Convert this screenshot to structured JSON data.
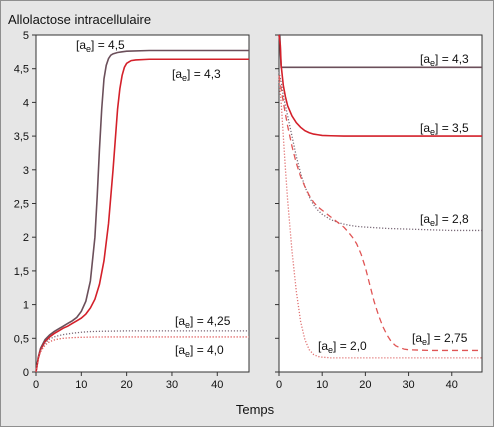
{
  "chart_data": [
    {
      "type": "line",
      "title": "Allolactose intracellulaire",
      "xlabel": "Temps",
      "ylabel": "",
      "xlim": [
        0,
        47
      ],
      "ylim": [
        0,
        5
      ],
      "xticks": [
        0,
        10,
        20,
        30,
        40
      ],
      "yticks": [
        0,
        0.5,
        1,
        1.5,
        2,
        2.5,
        3,
        3.5,
        4,
        4.5,
        5
      ],
      "ytick_labels": [
        "0",
        "0,5",
        "1",
        "1,5",
        "2",
        "2,5",
        "3",
        "3,5",
        "4",
        "4,5",
        "5"
      ],
      "series": [
        {
          "name": "[ae] = 4,5",
          "color": "#6b4f5a",
          "style": "solid",
          "x": [
            0,
            0.5,
            1,
            2,
            3,
            4,
            5,
            6,
            7,
            8,
            9,
            10,
            11,
            12,
            13,
            13.5,
            14,
            14.5,
            15,
            15.5,
            16,
            16.5,
            17,
            18,
            19,
            20,
            25,
            30,
            35,
            40,
            47
          ],
          "y": [
            0,
            0.22,
            0.35,
            0.48,
            0.55,
            0.6,
            0.64,
            0.68,
            0.72,
            0.76,
            0.81,
            0.9,
            1.05,
            1.35,
            2.0,
            2.6,
            3.3,
            3.9,
            4.35,
            4.55,
            4.65,
            4.7,
            4.72,
            4.74,
            4.75,
            4.76,
            4.77,
            4.77,
            4.77,
            4.77,
            4.77
          ]
        },
        {
          "name": "[ae] = 4,3",
          "color": "#d4202a",
          "style": "solid",
          "x": [
            0,
            0.5,
            1,
            2,
            3,
            4,
            5,
            6,
            7,
            8,
            9,
            10,
            11,
            12,
            13,
            14,
            15,
            16,
            17,
            17.5,
            18,
            18.5,
            19,
            19.5,
            20,
            21,
            22,
            25,
            30,
            35,
            40,
            47
          ],
          "y": [
            0,
            0.2,
            0.33,
            0.45,
            0.52,
            0.57,
            0.61,
            0.65,
            0.68,
            0.72,
            0.76,
            0.8,
            0.86,
            0.95,
            1.08,
            1.3,
            1.65,
            2.2,
            3.0,
            3.45,
            3.9,
            4.2,
            4.4,
            4.52,
            4.58,
            4.62,
            4.63,
            4.64,
            4.64,
            4.64,
            4.64,
            4.64
          ]
        },
        {
          "name": "[ae] = 4,25",
          "color": "#7a6a78",
          "style": "dotted",
          "x": [
            0,
            0.5,
            1,
            2,
            3,
            4,
            5,
            6,
            8,
            10,
            12,
            15,
            20,
            25,
            30,
            35,
            40,
            47
          ],
          "y": [
            0,
            0.2,
            0.32,
            0.43,
            0.49,
            0.52,
            0.54,
            0.555,
            0.575,
            0.59,
            0.6,
            0.605,
            0.61,
            0.61,
            0.61,
            0.61,
            0.61,
            0.61
          ]
        },
        {
          "name": "[ae] = 4,0",
          "color": "#e05555",
          "style": "dotted",
          "x": [
            0,
            0.5,
            1,
            2,
            3,
            4,
            5,
            6,
            8,
            10,
            12,
            15,
            20,
            25,
            30,
            35,
            40,
            47
          ],
          "y": [
            0,
            0.19,
            0.3,
            0.4,
            0.45,
            0.475,
            0.49,
            0.5,
            0.51,
            0.515,
            0.518,
            0.52,
            0.52,
            0.52,
            0.52,
            0.52,
            0.52,
            0.52
          ]
        }
      ]
    },
    {
      "type": "line",
      "title": "",
      "xlabel": "Temps",
      "ylabel": "",
      "xlim": [
        0,
        47
      ],
      "ylim": [
        0,
        5
      ],
      "xticks": [
        0,
        10,
        20,
        30,
        40
      ],
      "series": [
        {
          "name": "[ae] = 4,3",
          "color": "#6b4f5a",
          "style": "solid",
          "x": [
            0,
            0.2,
            0.35,
            0.5,
            1,
            5,
            10,
            20,
            30,
            40,
            47
          ],
          "y": [
            5,
            5,
            4.7,
            4.52,
            4.52,
            4.52,
            4.52,
            4.52,
            4.52,
            4.52,
            4.52
          ]
        },
        {
          "name": "[ae] = 3,5",
          "color": "#d4202a",
          "style": "solid",
          "x": [
            0,
            0.3,
            0.5,
            1,
            1.5,
            2,
            3,
            4,
            5,
            6,
            7,
            8,
            9,
            10,
            12,
            15,
            20,
            30,
            40,
            47
          ],
          "y": [
            5,
            4.85,
            4.55,
            4.25,
            4.08,
            3.95,
            3.8,
            3.7,
            3.63,
            3.58,
            3.55,
            3.53,
            3.52,
            3.51,
            3.505,
            3.5,
            3.5,
            3.5,
            3.5,
            3.5
          ]
        },
        {
          "name": "[ae] = 2,8",
          "color": "#7a6a78",
          "style": "dotted",
          "x": [
            0,
            0.5,
            1,
            2,
            3,
            4,
            5,
            6,
            7,
            8,
            9,
            10,
            12,
            14,
            16,
            18,
            20,
            25,
            30,
            35,
            40,
            47
          ],
          "y": [
            4.45,
            4.3,
            4.1,
            3.8,
            3.5,
            3.2,
            2.95,
            2.75,
            2.6,
            2.48,
            2.4,
            2.34,
            2.26,
            2.21,
            2.18,
            2.16,
            2.15,
            2.13,
            2.12,
            2.11,
            2.1,
            2.1
          ]
        },
        {
          "name": "[ae] = 2,75",
          "color": "#e05555",
          "style": "dashed",
          "x": [
            0,
            0.5,
            1,
            2,
            3,
            4,
            5,
            6,
            7,
            8,
            9,
            10,
            11,
            12,
            13,
            14,
            15,
            16,
            17,
            18,
            19,
            20,
            21,
            22,
            23,
            24,
            25,
            26,
            27,
            28,
            29,
            30,
            35,
            40,
            47
          ],
          "y": [
            4.4,
            4.2,
            4.0,
            3.65,
            3.35,
            3.1,
            2.9,
            2.75,
            2.62,
            2.52,
            2.45,
            2.4,
            2.35,
            2.3,
            2.25,
            2.2,
            2.15,
            2.08,
            2.0,
            1.9,
            1.75,
            1.55,
            1.3,
            1.05,
            0.85,
            0.68,
            0.55,
            0.45,
            0.39,
            0.36,
            0.34,
            0.33,
            0.32,
            0.32,
            0.32
          ]
        },
        {
          "name": "[ae] = 2,0",
          "color": "#e07070",
          "style": "dotted",
          "x": [
            0,
            0.5,
            1,
            1.5,
            2,
            3,
            4,
            5,
            6,
            7,
            8,
            9,
            10,
            12,
            15,
            20,
            30,
            40,
            47
          ],
          "y": [
            4.35,
            4.0,
            3.5,
            3.0,
            2.55,
            1.8,
            1.2,
            0.75,
            0.48,
            0.33,
            0.26,
            0.23,
            0.22,
            0.21,
            0.21,
            0.21,
            0.21,
            0.21,
            0.21
          ]
        }
      ]
    }
  ]
}
